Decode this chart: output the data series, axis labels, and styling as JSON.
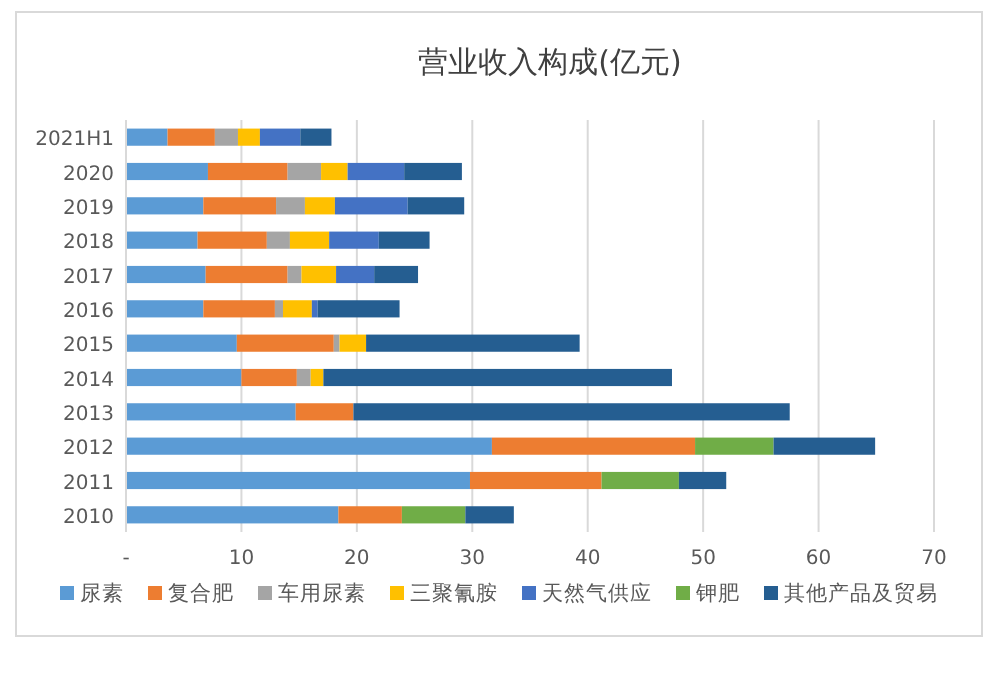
{
  "chart_data": {
    "type": "bar",
    "orientation": "horizontal",
    "stacked": true,
    "title": "营业收入构成(亿元)",
    "categories": [
      "2021H1",
      "2020",
      "2019",
      "2018",
      "2017",
      "2016",
      "2015",
      "2014",
      "2013",
      "2012",
      "2011",
      "2010"
    ],
    "series": [
      {
        "name": "尿素",
        "color": "#5b9bd5",
        "values": [
          3.6,
          7.1,
          6.7,
          6.2,
          6.9,
          6.7,
          9.6,
          10.0,
          14.7,
          31.7,
          29.8,
          18.4
        ]
      },
      {
        "name": "复合肥",
        "color": "#ed7d31",
        "values": [
          4.1,
          6.9,
          6.3,
          6.0,
          7.1,
          6.2,
          8.4,
          4.8,
          5.0,
          17.6,
          11.4,
          5.5
        ]
      },
      {
        "name": "车用尿素",
        "color": "#a5a5a5",
        "values": [
          2.0,
          2.9,
          2.5,
          2.0,
          1.2,
          0.7,
          0.5,
          1.2,
          0,
          0,
          0,
          0
        ]
      },
      {
        "name": "三聚氰胺",
        "color": "#ffc000",
        "values": [
          1.9,
          2.3,
          2.6,
          3.4,
          3.0,
          2.5,
          2.3,
          1.1,
          0,
          0,
          0,
          0
        ]
      },
      {
        "name": "天然气供应",
        "color": "#4472c4",
        "values": [
          3.5,
          4.9,
          6.3,
          4.3,
          3.3,
          0.5,
          0,
          0,
          0,
          0,
          0,
          0
        ]
      },
      {
        "name": "钾肥",
        "color": "#70ad47",
        "values": [
          0,
          0,
          0,
          0,
          0,
          0,
          0,
          0,
          0,
          6.8,
          6.7,
          5.5
        ]
      },
      {
        "name": "其他产品及贸易",
        "color": "#255e91",
        "values": [
          2.7,
          5.0,
          4.9,
          4.4,
          3.8,
          7.1,
          18.5,
          30.2,
          37.8,
          8.8,
          4.1,
          4.2
        ]
      }
    ],
    "xlim": [
      0,
      70
    ],
    "xticks": [
      {
        "value": 0,
        "label": "-"
      },
      10,
      20,
      30,
      40,
      50,
      60,
      70
    ],
    "grid": "x",
    "legend": "bottom"
  }
}
